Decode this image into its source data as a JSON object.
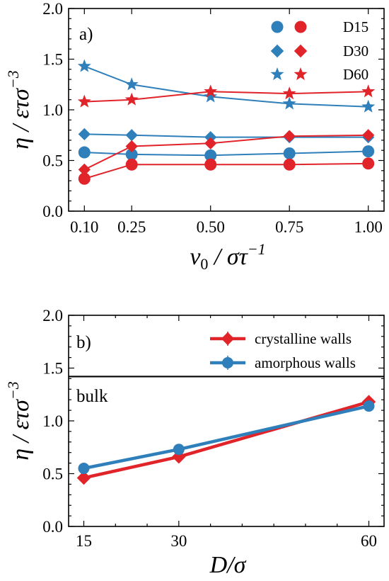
{
  "colors": {
    "blue": "#2f7fba",
    "red": "#e0242a",
    "black": "#000000"
  },
  "chart_data": [
    {
      "type": "line",
      "panel_label": "a)",
      "xlabel": "v0 / στ⁻¹",
      "xlabel_parts": {
        "base": "v",
        "sub": "0",
        "unit": " / στ",
        "sup": "−1"
      },
      "ylabel": "η / ετσ⁻³",
      "ylabel_parts": {
        "text": "η / ετσ",
        "sup": "−3"
      },
      "x": [
        0.1,
        0.25,
        0.5,
        0.75,
        1.0
      ],
      "xticks": [
        "0.10",
        "0.25",
        "0.50",
        "0.75",
        "1.00"
      ],
      "xlim": [
        0.05,
        1.05
      ],
      "ylim": [
        0.0,
        2.0
      ],
      "yticks": [
        "0.0",
        "0.5",
        "1.0",
        "1.5",
        "2.0"
      ],
      "legend": {
        "placement": "top-right",
        "entries": [
          "D15",
          "D30",
          "D60"
        ]
      },
      "series": [
        {
          "walls": "amorphous",
          "D": "D15",
          "marker": "circle",
          "color": "#2f7fba",
          "values": [
            0.58,
            0.56,
            0.55,
            0.57,
            0.59
          ]
        },
        {
          "walls": "crystalline",
          "D": "D15",
          "marker": "circle",
          "color": "#e0242a",
          "values": [
            0.32,
            0.46,
            0.46,
            0.46,
            0.47
          ]
        },
        {
          "walls": "amorphous",
          "D": "D30",
          "marker": "diamond",
          "color": "#2f7fba",
          "values": [
            0.76,
            0.75,
            0.73,
            0.73,
            0.73
          ]
        },
        {
          "walls": "crystalline",
          "D": "D30",
          "marker": "diamond",
          "color": "#e0242a",
          "values": [
            0.41,
            0.64,
            0.67,
            0.74,
            0.75
          ]
        },
        {
          "walls": "amorphous",
          "D": "D60",
          "marker": "star",
          "color": "#2f7fba",
          "values": [
            1.43,
            1.25,
            1.13,
            1.06,
            1.03
          ]
        },
        {
          "walls": "crystalline",
          "D": "D60",
          "marker": "star",
          "color": "#e0242a",
          "values": [
            1.08,
            1.1,
            1.18,
            1.16,
            1.18
          ]
        }
      ]
    },
    {
      "type": "line",
      "panel_label": "b)",
      "xlabel": "D/σ",
      "ylabel": "η / ετσ⁻³",
      "ylabel_parts": {
        "text": "η / ετσ",
        "sup": "−3"
      },
      "x": [
        15,
        30,
        60
      ],
      "xticks": [
        "15",
        "30",
        "60"
      ],
      "xlim": [
        12.6,
        62.4
      ],
      "ylim": [
        0.0,
        2.0
      ],
      "yticks": [
        "0.0",
        "0.5",
        "1.0",
        "1.5",
        "2.0"
      ],
      "hline": {
        "y": 1.42,
        "label": "bulk"
      },
      "legend": {
        "placement": "top-right",
        "entries": [
          "crystalline walls",
          "amorphous walls"
        ]
      },
      "series": [
        {
          "name": "crystalline walls",
          "marker": "diamond",
          "color": "#e0242a",
          "values": [
            0.46,
            0.66,
            1.18
          ]
        },
        {
          "name": "amorphous walls",
          "marker": "circle",
          "color": "#2f7fba",
          "values": [
            0.55,
            0.73,
            1.14
          ]
        }
      ]
    }
  ]
}
